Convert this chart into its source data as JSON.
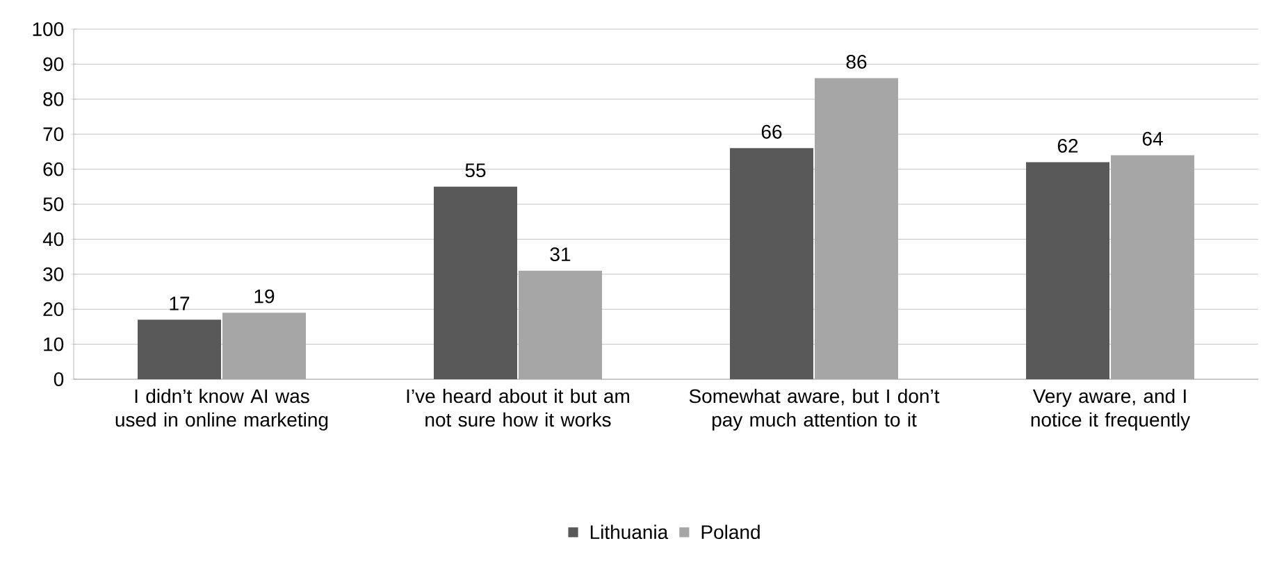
{
  "chart_data": {
    "type": "bar",
    "categories": [
      "I didn’t know AI was used in online marketing",
      "I’ve heard about it but am not sure how it works",
      "Somewhat aware, but I don’t pay much attention to it",
      "Very aware, and I notice it frequently"
    ],
    "series": [
      {
        "name": "Lithuania",
        "color": "#595959",
        "values": [
          17,
          55,
          66,
          62
        ]
      },
      {
        "name": "Poland",
        "color": "#a6a6a6",
        "values": [
          19,
          31,
          86,
          64
        ]
      }
    ],
    "ylim": [
      0,
      100
    ],
    "yticks": [
      0,
      10,
      20,
      30,
      40,
      50,
      60,
      70,
      80,
      90,
      100
    ],
    "grid": "y",
    "legend": "bottom",
    "data_labels": true
  }
}
